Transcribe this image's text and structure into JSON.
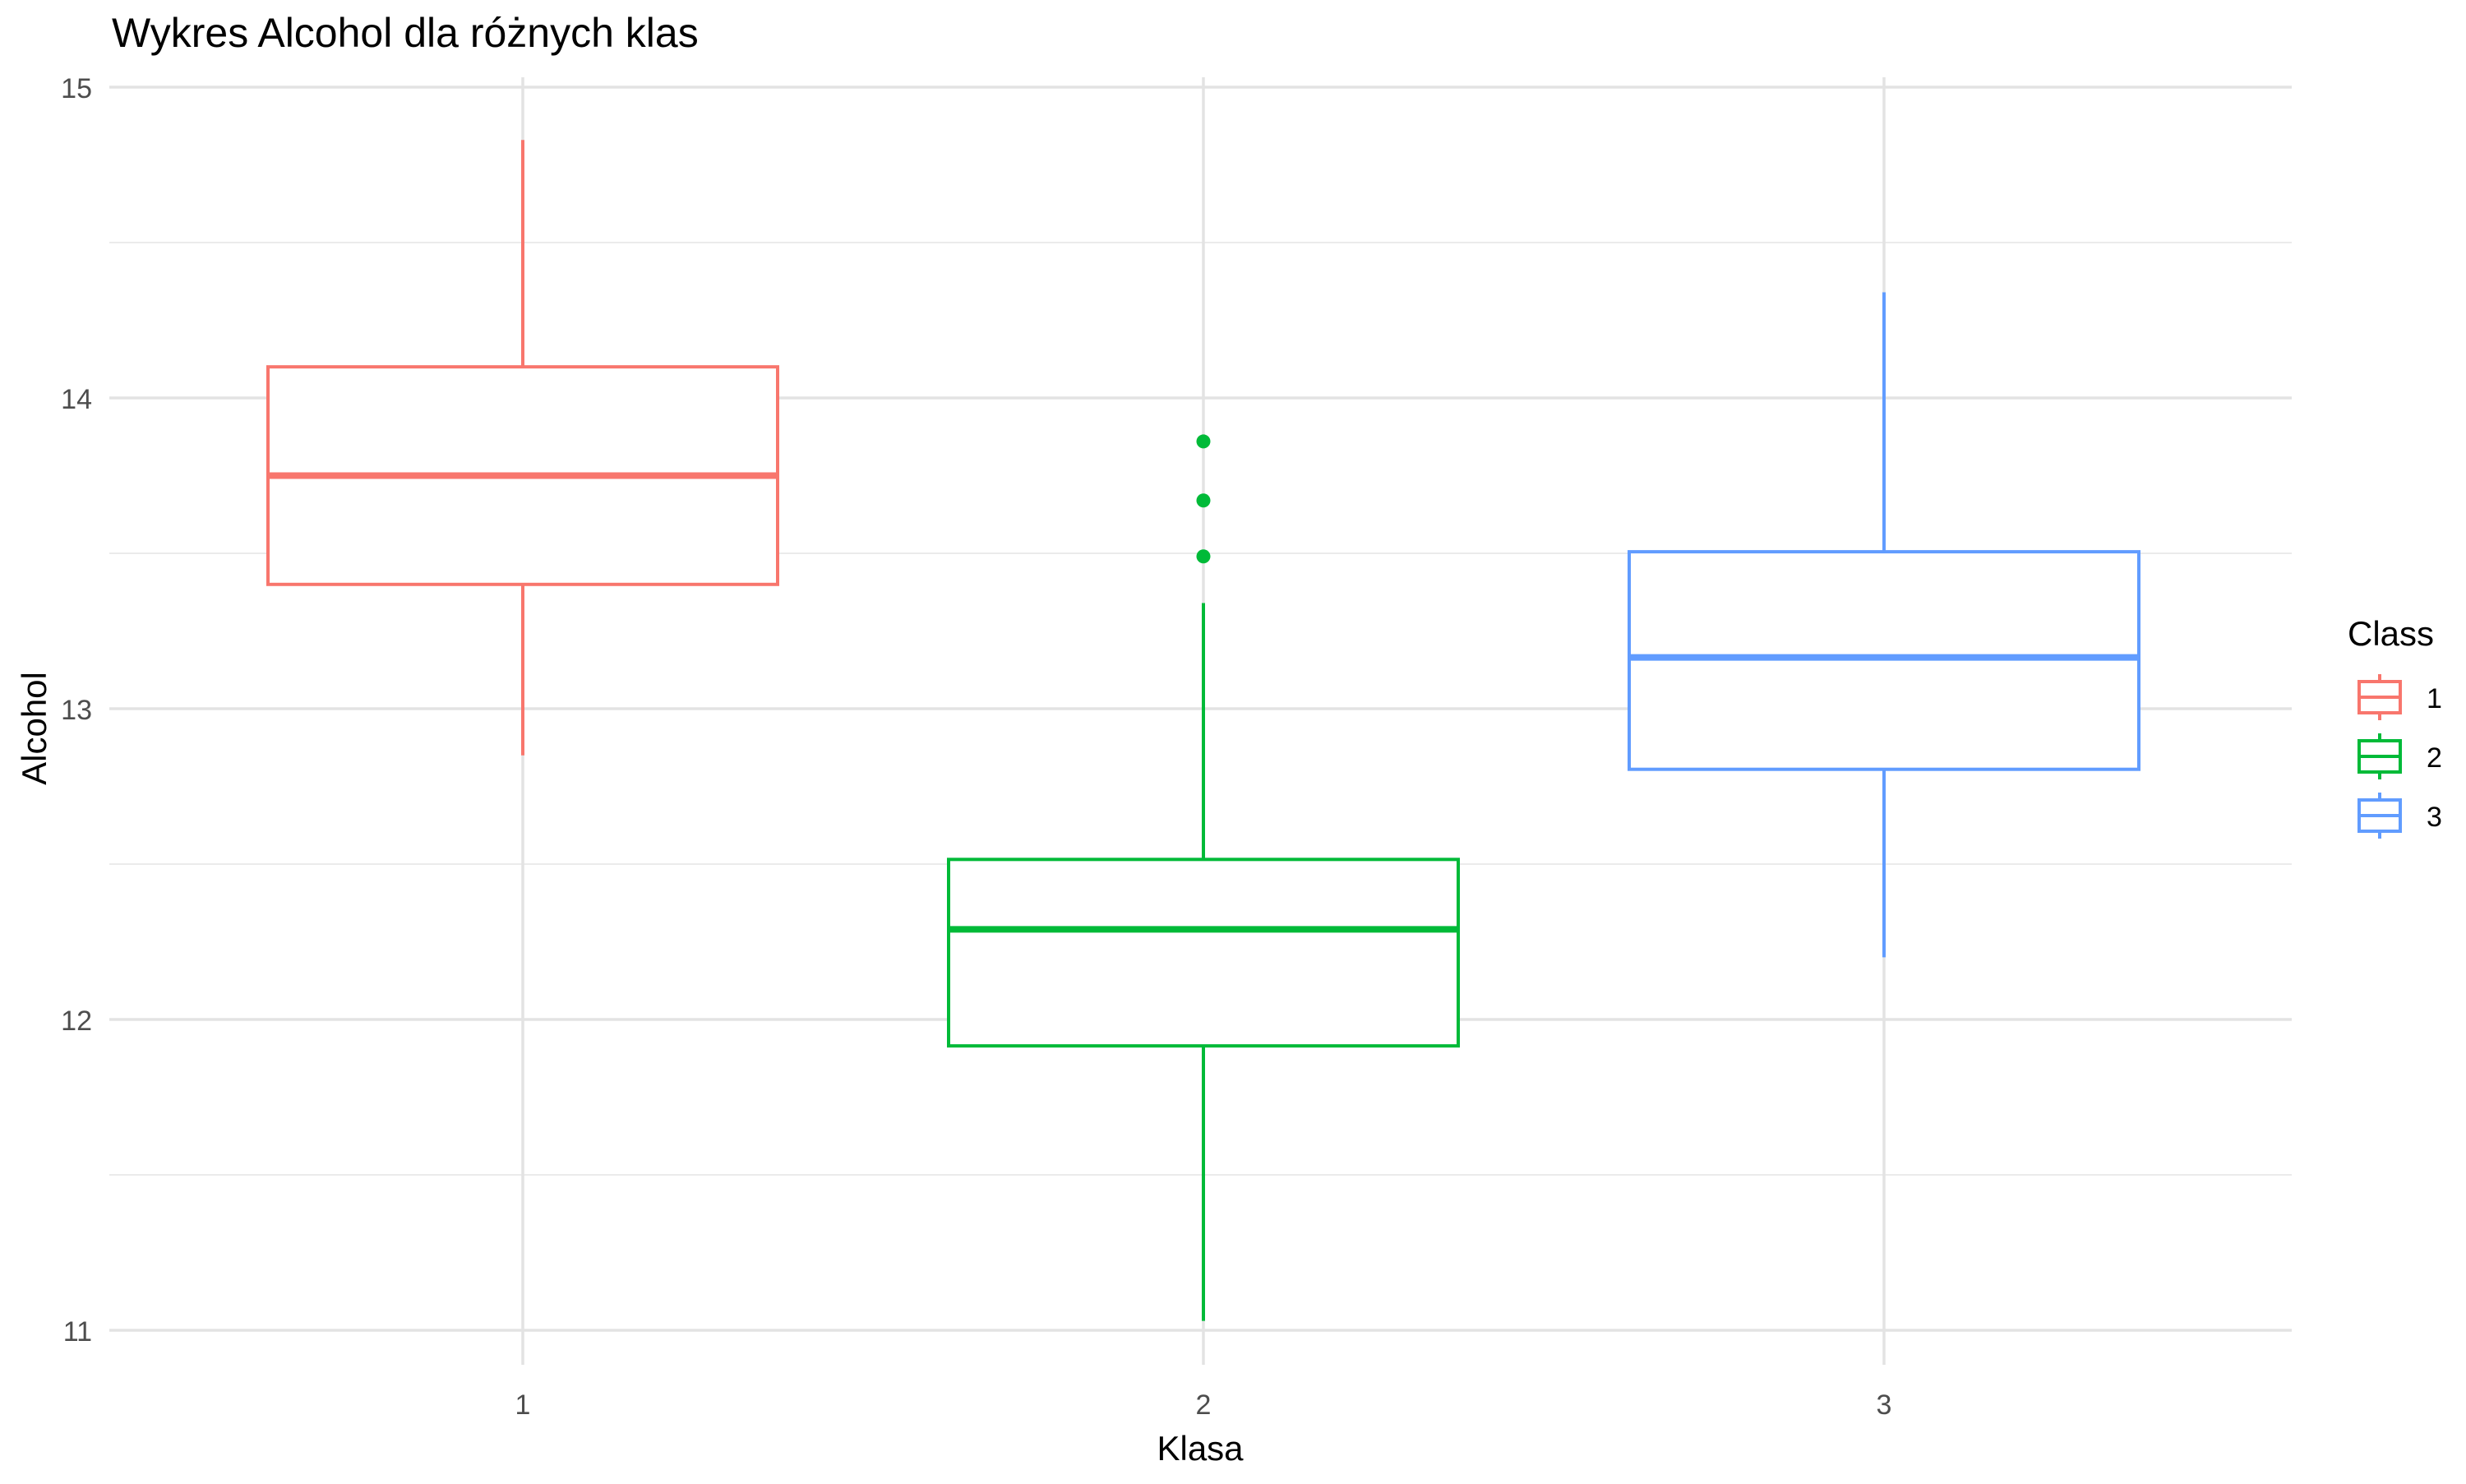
{
  "chart_data": {
    "type": "boxplot",
    "title": "Wykres Alcohol dla różnych klas",
    "xlabel": "Klasa",
    "ylabel": "Alcohol",
    "categories": [
      "1",
      "2",
      "3"
    ],
    "ylim": [
      10.8,
      15.05
    ],
    "y_ticks": [
      11,
      12,
      13,
      14,
      15
    ],
    "y_minor_ticks": [
      11.5,
      12.5,
      13.5,
      14.5
    ],
    "grid": true,
    "legend": {
      "title": "Class",
      "placement": "right",
      "entries": [
        "1",
        "2",
        "3"
      ]
    },
    "colors": [
      "#F8766D",
      "#00BA38",
      "#619CFF"
    ],
    "series": [
      {
        "category": "1",
        "min": 12.85,
        "q1": 13.4,
        "median": 13.75,
        "q3": 14.1,
        "max": 14.83,
        "outliers": []
      },
      {
        "category": "2",
        "min": 11.03,
        "q1": 11.915,
        "median": 12.29,
        "q3": 12.515,
        "max": 13.34,
        "outliers": [
          13.49,
          13.67,
          13.86
        ]
      },
      {
        "category": "3",
        "min": 12.2,
        "q1": 12.805,
        "median": 13.165,
        "q3": 13.505,
        "max": 14.34,
        "outliers": []
      }
    ]
  }
}
